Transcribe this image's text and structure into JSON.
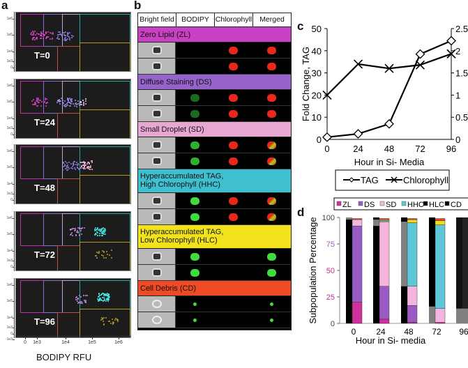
{
  "figure": {
    "panel_labels": [
      "a",
      "b",
      "c",
      "d"
    ]
  },
  "panel_a": {
    "x_axis_label": "BODIPY RFU",
    "x_ticks": [
      "0",
      "1e3",
      "1e4",
      "1e5",
      "1e6"
    ],
    "y_ticks": [
      "1e6",
      "1e5",
      "1e4",
      "1e3",
      "0"
    ],
    "y_ticks_last": [
      "1e6",
      "1e5",
      "1e4",
      "1e3",
      "0",
      "-1e3"
    ],
    "plots": [
      {
        "label": "T=0"
      },
      {
        "label": "T=24"
      },
      {
        "label": "T=48"
      },
      {
        "label": "T=72"
      },
      {
        "label": "T=96"
      }
    ],
    "gate_colors": {
      "ZL": "#c72cb5",
      "DS": "#8a6ad0",
      "SD": "#c9a3d8",
      "HHC": "#2aa8a0",
      "HLC": "#b09a28",
      "CD": "#c05050"
    }
  },
  "panel_b": {
    "columns": [
      "Bright field",
      "BODIPY",
      "Chlorophyll",
      "Merged"
    ],
    "categories": [
      {
        "label": "Zero Lipid (ZL)",
        "color": "#c741c2",
        "bodipy": "none",
        "chl": true
      },
      {
        "label": "Diffuse Staining (DS)",
        "color": "#9563c9",
        "bodipy": "dim",
        "chl": true
      },
      {
        "label": "Small Droplet (SD)",
        "color": "#e8a7d3",
        "bodipy": "mid",
        "chl": true
      },
      {
        "label": "Hyperaccumulated TAG, High Chlorophyll (HHC)",
        "line1": "Hyperaccumulated TAG,",
        "line2": "High Chlorophyll (HHC)",
        "color": "#3fbfcf",
        "bodipy": "bright",
        "chl": true
      },
      {
        "label": "Hyperaccumulated TAG, Low Chlorophyll (HLC)",
        "line1": "Hyperaccumulated TAG,",
        "line2": "Low Chlorophyll (HLC)",
        "color": "#f2e21c",
        "bodipy": "bright",
        "chl": false
      },
      {
        "label": "Cell Debris (CD)",
        "color": "#ee4a25",
        "bodipy": "small",
        "chl": false
      }
    ]
  },
  "chart_data": [
    {
      "type": "line",
      "panel": "c",
      "title": "",
      "xlabel": "Hour in Si- Media",
      "ylabel": "Fold Change, TAG",
      "x": [
        0,
        24,
        48,
        72,
        96
      ],
      "x_ticks": [
        "0",
        "24",
        "48",
        "72",
        "96"
      ],
      "ylim": [
        0,
        50
      ],
      "y_ticks": [
        "0",
        "10",
        "20",
        "30",
        "40",
        "50"
      ],
      "y2lim": [
        0,
        2.5
      ],
      "y2_ticks": [
        "0",
        "0.5",
        "1",
        "1.5",
        "2",
        "2.5"
      ],
      "grid": false,
      "legend": "bottom",
      "series": [
        {
          "name": "TAG",
          "axis": "left",
          "marker": "diamond",
          "values": [
            1,
            2.5,
            7,
            38.5,
            44.5
          ]
        },
        {
          "name": "Chlorophyll",
          "axis": "right",
          "marker": "x",
          "values": [
            1.0,
            1.7,
            1.6,
            1.68,
            1.93
          ]
        }
      ]
    },
    {
      "type": "bar",
      "panel": "d",
      "stacked": true,
      "xlabel": "Hour in Si- media",
      "ylabel": "Subpopulation Percentage",
      "categories": [
        "0",
        "24",
        "48",
        "72",
        "96"
      ],
      "ylim": [
        0,
        100
      ],
      "y_ticks": [
        "0",
        "25",
        "50",
        "75",
        "100"
      ],
      "legend": "top",
      "legend_entries": [
        {
          "name": "ZL",
          "color": "#d02f9e"
        },
        {
          "name": "DS",
          "color": "#9a5cc4"
        },
        {
          "name": "SD",
          "color": "#f4b6dc"
        },
        {
          "name": "HHC",
          "color": "#5ec8d8"
        },
        {
          "name": "HLC",
          "color": "#f0dc1e"
        },
        {
          "name": "CD",
          "color": "#e8452a"
        }
      ],
      "series_right_bar": [
        {
          "name": "ZL",
          "values": [
            20,
            4,
            1,
            1,
            0
          ]
        },
        {
          "name": "DS",
          "values": [
            72,
            31,
            16,
            0,
            0
          ]
        },
        {
          "name": "SD",
          "values": [
            6,
            61,
            18,
            13,
            0
          ]
        },
        {
          "name": "HHC",
          "values": [
            0,
            1,
            60,
            79,
            0
          ]
        },
        {
          "name": "HLC",
          "values": [
            0,
            1,
            3,
            4,
            0
          ]
        },
        {
          "name": "CD",
          "values": [
            1,
            1,
            1,
            2,
            0
          ]
        }
      ],
      "series_left_bar": [
        {
          "name": "black",
          "values": [
            98,
            92,
            35,
            16,
            100
          ]
        },
        {
          "name": "grey",
          "values": [
            2,
            6,
            61,
            0,
            14
          ]
        }
      ]
    }
  ]
}
